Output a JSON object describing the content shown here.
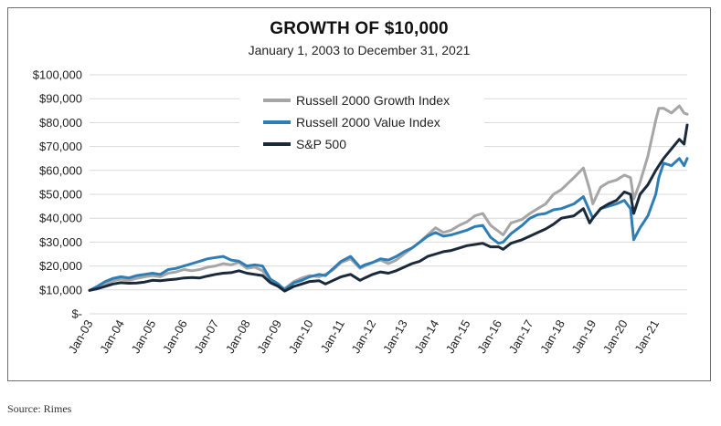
{
  "chart_data": {
    "type": "line",
    "title": "GROWTH OF $10,000",
    "subtitle": "January 1, 2003 to December 31, 2021",
    "xlabel": "",
    "ylabel": "",
    "ylim": [
      0,
      100000
    ],
    "yticks": [
      "$-",
      "$10,000",
      "$20,000",
      "$30,000",
      "$40,000",
      "$50,000",
      "$60,000",
      "$70,000",
      "$80,000",
      "$90,000",
      "$100,000"
    ],
    "xticks": [
      "Jan-03",
      "Jan-04",
      "Jan-05",
      "Jan-06",
      "Jan-07",
      "Jan-08",
      "Jan-09",
      "Jan-10",
      "Jan-11",
      "Jan-12",
      "Jan-13",
      "Jan-14",
      "Jan-15",
      "Jan-16",
      "Jan-17",
      "Jan-18",
      "Jan-19",
      "Jan-20",
      "Jan-21"
    ],
    "xlim": [
      2003.0,
      2022.0
    ],
    "grid": "horizontal",
    "legend": "top-center",
    "series": [
      {
        "name": "Russell 2000 Growth Index",
        "color": "#a6a6a6",
        "x": [
          2003.0,
          2003.25,
          2003.5,
          2003.75,
          2004.0,
          2004.25,
          2004.5,
          2004.75,
          2005.0,
          2005.25,
          2005.5,
          2005.75,
          2006.0,
          2006.25,
          2006.5,
          2006.75,
          2007.0,
          2007.25,
          2007.5,
          2007.75,
          2008.0,
          2008.25,
          2008.5,
          2008.75,
          2009.0,
          2009.2,
          2009.5,
          2009.75,
          2010.0,
          2010.3,
          2010.5,
          2010.75,
          2011.0,
          2011.3,
          2011.6,
          2011.75,
          2012.0,
          2012.25,
          2012.5,
          2012.75,
          2013.0,
          2013.25,
          2013.5,
          2013.75,
          2014.0,
          2014.25,
          2014.5,
          2014.75,
          2015.0,
          2015.25,
          2015.5,
          2015.75,
          2016.0,
          2016.15,
          2016.4,
          2016.75,
          2017.0,
          2017.25,
          2017.5,
          2017.75,
          2018.0,
          2018.4,
          2018.7,
          2018.9,
          2019.0,
          2019.25,
          2019.5,
          2019.75,
          2020.0,
          2020.2,
          2020.3,
          2020.5,
          2020.75,
          2021.0,
          2021.1,
          2021.25,
          2021.5,
          2021.75,
          2021.9,
          2022.0
        ],
        "values": [
          9800,
          11000,
          12500,
          13800,
          14500,
          14000,
          14800,
          15500,
          16000,
          15500,
          17000,
          17500,
          18500,
          18000,
          18500,
          19500,
          20000,
          21000,
          20500,
          21500,
          19000,
          19500,
          18000,
          14000,
          12000,
          10500,
          13500,
          15000,
          16000,
          15500,
          16500,
          18500,
          21500,
          23000,
          19000,
          20000,
          21500,
          22500,
          21000,
          22500,
          25000,
          27500,
          30000,
          33000,
          36000,
          34000,
          35000,
          37000,
          38500,
          41000,
          42000,
          37000,
          34500,
          33000,
          38000,
          39500,
          42000,
          44000,
          46000,
          50000,
          52000,
          57000,
          61000,
          52000,
          46000,
          53000,
          55000,
          56000,
          58000,
          57000,
          48000,
          55000,
          66000,
          81000,
          86000,
          86000,
          84000,
          87000,
          84000,
          83500
        ]
      },
      {
        "name": "Russell 2000 Value Index",
        "color": "#2f7db5",
        "x": [
          2003.0,
          2003.25,
          2003.5,
          2003.75,
          2004.0,
          2004.25,
          2004.5,
          2004.75,
          2005.0,
          2005.25,
          2005.5,
          2005.75,
          2006.0,
          2006.25,
          2006.5,
          2006.75,
          2007.0,
          2007.25,
          2007.5,
          2007.75,
          2008.0,
          2008.25,
          2008.5,
          2008.75,
          2009.0,
          2009.2,
          2009.5,
          2009.75,
          2010.0,
          2010.3,
          2010.5,
          2010.75,
          2011.0,
          2011.3,
          2011.6,
          2011.75,
          2012.0,
          2012.25,
          2012.5,
          2012.75,
          2013.0,
          2013.25,
          2013.5,
          2013.75,
          2014.0,
          2014.25,
          2014.5,
          2014.75,
          2015.0,
          2015.25,
          2015.5,
          2015.75,
          2016.0,
          2016.15,
          2016.4,
          2016.75,
          2017.0,
          2017.25,
          2017.5,
          2017.75,
          2018.0,
          2018.4,
          2018.7,
          2018.9,
          2019.0,
          2019.25,
          2019.5,
          2019.75,
          2020.0,
          2020.2,
          2020.3,
          2020.5,
          2020.75,
          2021.0,
          2021.1,
          2021.25,
          2021.5,
          2021.75,
          2021.9,
          2022.0
        ],
        "values": [
          9800,
          11500,
          13500,
          14800,
          15500,
          15000,
          16000,
          16500,
          17000,
          16500,
          18500,
          19000,
          20000,
          21000,
          22000,
          23000,
          23500,
          24000,
          22500,
          22000,
          20000,
          20500,
          20000,
          14500,
          12500,
          10000,
          13000,
          14000,
          15500,
          16500,
          16000,
          19000,
          22000,
          24000,
          19500,
          20500,
          21500,
          23000,
          22500,
          24000,
          26000,
          27500,
          30000,
          32500,
          34000,
          32500,
          33000,
          34000,
          35000,
          36500,
          37000,
          32000,
          29500,
          30000,
          33500,
          37000,
          40000,
          41500,
          42000,
          43500,
          44000,
          46000,
          49000,
          43000,
          40000,
          44000,
          45000,
          46000,
          47500,
          44000,
          31000,
          36000,
          41000,
          50000,
          57000,
          63000,
          62000,
          65000,
          62000,
          65000
        ]
      },
      {
        "name": "S&P 500",
        "color": "#1b2a3a",
        "x": [
          2003.0,
          2003.25,
          2003.5,
          2003.75,
          2004.0,
          2004.25,
          2004.5,
          2004.75,
          2005.0,
          2005.25,
          2005.5,
          2005.75,
          2006.0,
          2006.25,
          2006.5,
          2006.75,
          2007.0,
          2007.25,
          2007.5,
          2007.75,
          2008.0,
          2008.25,
          2008.5,
          2008.75,
          2009.0,
          2009.2,
          2009.5,
          2009.75,
          2010.0,
          2010.3,
          2010.5,
          2010.75,
          2011.0,
          2011.3,
          2011.6,
          2011.75,
          2012.0,
          2012.25,
          2012.5,
          2012.75,
          2013.0,
          2013.25,
          2013.5,
          2013.75,
          2014.0,
          2014.25,
          2014.5,
          2014.75,
          2015.0,
          2015.25,
          2015.5,
          2015.75,
          2016.0,
          2016.15,
          2016.4,
          2016.75,
          2017.0,
          2017.25,
          2017.5,
          2017.75,
          2018.0,
          2018.4,
          2018.7,
          2018.9,
          2019.0,
          2019.25,
          2019.5,
          2019.75,
          2020.0,
          2020.2,
          2020.3,
          2020.5,
          2020.75,
          2021.0,
          2021.1,
          2021.25,
          2021.5,
          2021.75,
          2021.9,
          2022.0
        ],
        "values": [
          9800,
          10500,
          11500,
          12500,
          13000,
          12800,
          12900,
          13300,
          14000,
          13800,
          14200,
          14500,
          15000,
          15200,
          15000,
          15800,
          16500,
          17000,
          17200,
          18000,
          17000,
          16500,
          16000,
          13000,
          11500,
          9500,
          11500,
          12500,
          13500,
          13800,
          12500,
          14000,
          15500,
          16500,
          14000,
          15000,
          16500,
          17500,
          17000,
          18000,
          19500,
          21000,
          22000,
          24000,
          25000,
          26000,
          26500,
          27500,
          28500,
          29000,
          29500,
          28000,
          28000,
          27000,
          29500,
          31000,
          32500,
          34000,
          35500,
          37500,
          40000,
          41000,
          44000,
          38000,
          40000,
          44000,
          46000,
          47500,
          51000,
          50000,
          42000,
          50000,
          54000,
          60000,
          62000,
          65000,
          69000,
          73000,
          71000,
          79000
        ]
      }
    ]
  },
  "footer": {
    "source": "Source: Rimes"
  }
}
